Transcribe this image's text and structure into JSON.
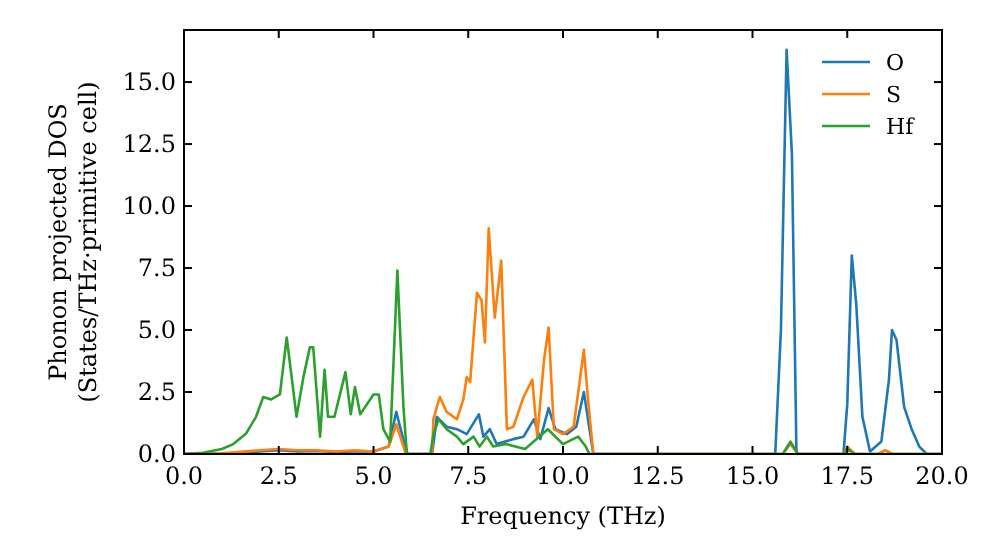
{
  "chart_data": {
    "type": "line",
    "xlabel": "Frequency (THz)",
    "ylabel": "Phonon projected DOS\n(States/THz·primitive cell)",
    "xlim": [
      0,
      20
    ],
    "ylim": [
      0,
      17.1
    ],
    "xticks": [
      {
        "value": 0,
        "label": "0.0"
      },
      {
        "value": 2.5,
        "label": "2.5"
      },
      {
        "value": 5,
        "label": "5.0"
      },
      {
        "value": 7.5,
        "label": "7.5"
      },
      {
        "value": 10,
        "label": "10.0"
      },
      {
        "value": 12.5,
        "label": "12.5"
      },
      {
        "value": 15,
        "label": "15.0"
      },
      {
        "value": 17.5,
        "label": "17.5"
      },
      {
        "value": 20,
        "label": "20.0"
      }
    ],
    "yticks": [
      {
        "value": 0,
        "label": "0.0"
      },
      {
        "value": 2.5,
        "label": "2.5"
      },
      {
        "value": 5,
        "label": "5.0"
      },
      {
        "value": 7.5,
        "label": "7.5"
      },
      {
        "value": 10,
        "label": "10.0"
      },
      {
        "value": 12.5,
        "label": "12.5"
      },
      {
        "value": 15,
        "label": "15.0"
      }
    ],
    "grid": false,
    "legend": "top right",
    "marker": "none",
    "line_style": "solid",
    "series": [
      {
        "name": "O",
        "color": "#1f77b4",
        "x": [
          0,
          1,
          2,
          2.5,
          3,
          3.5,
          4,
          4.5,
          5,
          5.4,
          5.6,
          5.75,
          5.9,
          6.55,
          6.67,
          6.93,
          7.2,
          7.46,
          7.78,
          7.9,
          8.07,
          8.25,
          8.69,
          8.96,
          9.23,
          9.4,
          9.62,
          9.8,
          10.1,
          10.35,
          10.55,
          10.8,
          15.6,
          15.75,
          15.9,
          16.04,
          16.16,
          17.4,
          17.5,
          17.62,
          17.74,
          17.9,
          18.1,
          18.4,
          18.6,
          18.68,
          18.8,
          19,
          19.2,
          19.4,
          19.6,
          20
        ],
        "values": [
          0,
          0.02,
          0.1,
          0.15,
          0.1,
          0.12,
          0.08,
          0.1,
          0.1,
          0.3,
          1.7,
          0.8,
          0,
          0,
          1.5,
          1.1,
          1,
          0.8,
          1.6,
          0.7,
          1,
          0.4,
          0.6,
          0.7,
          1.4,
          0.6,
          1.85,
          1,
          0.8,
          1.1,
          2.5,
          0,
          0,
          5,
          16.3,
          12.1,
          0,
          0,
          2,
          8,
          6,
          1.5,
          0.1,
          0.5,
          3,
          5,
          4.6,
          1.9,
          1,
          0.3,
          0,
          0
        ]
      },
      {
        "name": "S",
        "color": "#ff7f0e",
        "x": [
          0,
          1,
          2,
          2.5,
          3,
          3.5,
          4,
          4.5,
          5,
          5.4,
          5.6,
          5.75,
          5.85,
          6.55,
          6.58,
          6.75,
          6.93,
          7.2,
          7.37,
          7.46,
          7.55,
          7.73,
          7.85,
          7.94,
          8.04,
          8.2,
          8.37,
          8.52,
          8.69,
          8.96,
          9.19,
          9.32,
          9.5,
          9.62,
          9.76,
          10,
          10.28,
          10.55,
          10.66,
          10.8,
          15.8,
          16,
          16.2,
          17.4,
          17.5,
          17.7,
          18.3,
          18.5,
          18.7,
          20
        ],
        "values": [
          0,
          0.03,
          0.15,
          0.2,
          0.15,
          0.15,
          0.1,
          0.15,
          0.1,
          0.3,
          1.2,
          0.5,
          0,
          0,
          1.4,
          2.3,
          1.7,
          1.4,
          2.2,
          3.1,
          2.9,
          6.5,
          6.2,
          4.5,
          9.1,
          5.5,
          7.8,
          1,
          1.1,
          2.3,
          3,
          0.7,
          3.8,
          5.1,
          1,
          0.8,
          1.1,
          4.2,
          2.2,
          0,
          0,
          0.4,
          0,
          0,
          0.3,
          0,
          0,
          0.15,
          0,
          0
        ]
      },
      {
        "name": "Hf",
        "color": "#2ca02c",
        "x": [
          0,
          0.5,
          1,
          1.3,
          1.64,
          1.9,
          2.09,
          2.3,
          2.53,
          2.71,
          2.97,
          3.15,
          3.32,
          3.41,
          3.59,
          3.71,
          3.8,
          3.97,
          4.26,
          4.4,
          4.51,
          4.65,
          5,
          5.14,
          5.26,
          5.44,
          5.63,
          5.79,
          5.88,
          6.5,
          6.58,
          6.72,
          6.93,
          7.2,
          7.37,
          7.64,
          7.8,
          7.99,
          8.16,
          8.5,
          9,
          9.6,
          10,
          10.4,
          10.6,
          10.7,
          15.8,
          16,
          16.2,
          17.4,
          17.5,
          17.7,
          20
        ],
        "values": [
          0,
          0.05,
          0.2,
          0.4,
          0.83,
          1.5,
          2.3,
          2.2,
          2.4,
          4.7,
          1.5,
          3.1,
          4.3,
          4.3,
          0.7,
          3.4,
          1.5,
          1.5,
          3.3,
          1.6,
          2.7,
          1.6,
          2.4,
          2.4,
          1,
          0.5,
          7.4,
          1.9,
          0,
          0,
          0.8,
          1.4,
          1,
          0.7,
          0.4,
          0.7,
          0.3,
          0.7,
          0.3,
          0.4,
          0.2,
          1,
          0.4,
          0.7,
          0.3,
          0,
          0,
          0.5,
          0,
          0,
          0.2,
          0,
          0
        ]
      }
    ]
  }
}
